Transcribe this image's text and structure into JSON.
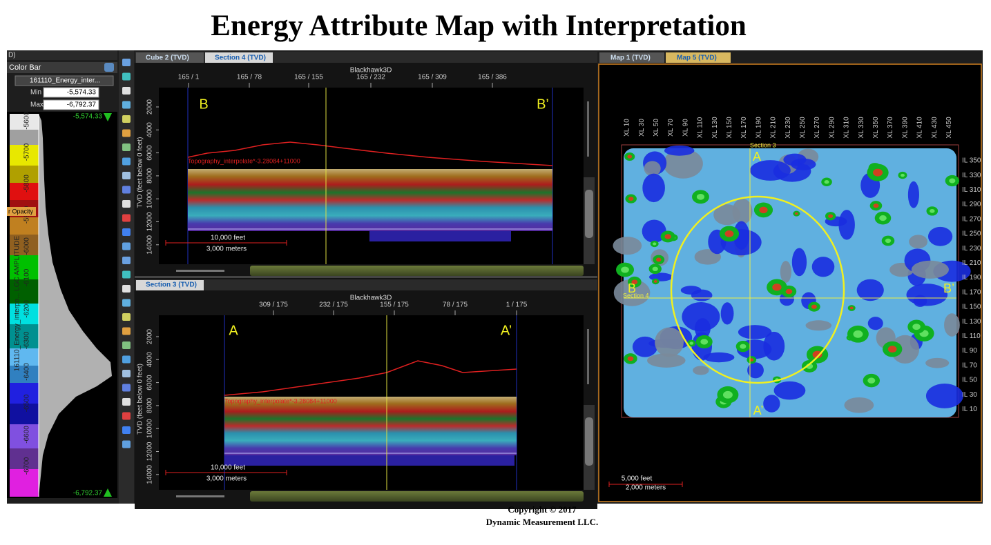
{
  "header": {
    "title": "Energy Attribute Map with Interpretation"
  },
  "color_bar_panel": {
    "window_label": "D)",
    "title": "Color Bar",
    "attribute": "161110_Energy_inter...",
    "min_label": "Min",
    "min": "-5,574.33",
    "max_label": "Max",
    "max": "-6,792.37",
    "top_value": "-5,574.33",
    "bottom_value": "-6,792.37",
    "opacity": "r Opacity",
    "axis_label": "161110_Energy_interpo...  LGC AMPLITUDE",
    "ticks": [
      -5600,
      -5700,
      -5800,
      -5900,
      -6000,
      -6100,
      -6200,
      -6300,
      -6400,
      -6500,
      -6600,
      -6700
    ]
  },
  "sections": [
    {
      "tabs": [
        "Cube 2 (TVD)",
        "Section 4 (TVD)"
      ],
      "survey": "Blackhawk3D",
      "x_ticks": [
        "165 / 1",
        "165 / 78",
        "165 / 155",
        "165 / 232",
        "165 / 309",
        "165 / 386"
      ],
      "y_label": "TVD (feet below 0 feet)",
      "y_ticks": [
        2000,
        4000,
        6000,
        8000,
        10000,
        12000,
        14000
      ],
      "left_marker": "B",
      "right_marker": "B’",
      "horizon_label": "Topography_interpolate*-3.28084+11000",
      "scale_feet": "10,000 feet",
      "scale_meters": "3,000 meters"
    },
    {
      "tabs": [
        "Section 3 (TVD)"
      ],
      "survey": "Blackhawk3D",
      "x_ticks": [
        "309 / 175",
        "232 / 175",
        "155 / 175",
        "78 / 175",
        "1 / 175"
      ],
      "y_label": "TVD (feet below 0 feet)",
      "y_ticks": [
        2000,
        4000,
        6000,
        8000,
        10000,
        12000,
        14000
      ],
      "left_marker": "A",
      "right_marker": "A’",
      "horizon_label": "Topography_interpolate*-3.28084+11000",
      "scale_feet": "10,000 feet",
      "scale_meters": "3,000 meters"
    }
  ],
  "map": {
    "tabs": [
      "Map 1 (TVD)",
      "Map 5 (TVD)"
    ],
    "xl_labels": [
      "XL 10",
      "XL 30",
      "XL 50",
      "XL 70",
      "XL 90",
      "XL 110",
      "XL 130",
      "XL 150",
      "XL 170",
      "XL 190",
      "XL 210",
      "XL 230",
      "XL 250",
      "XL 270",
      "XL 290",
      "XL 310",
      "XL 330",
      "XL 350",
      "XL 370",
      "XL 390",
      "XL 410",
      "XL 430",
      "XL 450"
    ],
    "il_labels": [
      "IL 350",
      "IL 330",
      "IL 310",
      "IL 290",
      "IL 270",
      "IL 250",
      "IL 230",
      "IL 210",
      "IL 190",
      "IL 170",
      "IL 150",
      "IL 130",
      "IL 110",
      "IL 90",
      "IL 70",
      "IL 50",
      "IL 30",
      "IL 10"
    ],
    "section_v": "Section 3",
    "section_h": "Section 4",
    "top_marker": "A",
    "bottom_marker": "A’",
    "left_marker": "B",
    "right_marker": "B’",
    "scale_feet": "5,000 feet",
    "scale_meters": "2,000 meters"
  },
  "footer": {
    "copyright": "Copyright  © 2017",
    "company": "Dynamic Measurement LLC."
  }
}
